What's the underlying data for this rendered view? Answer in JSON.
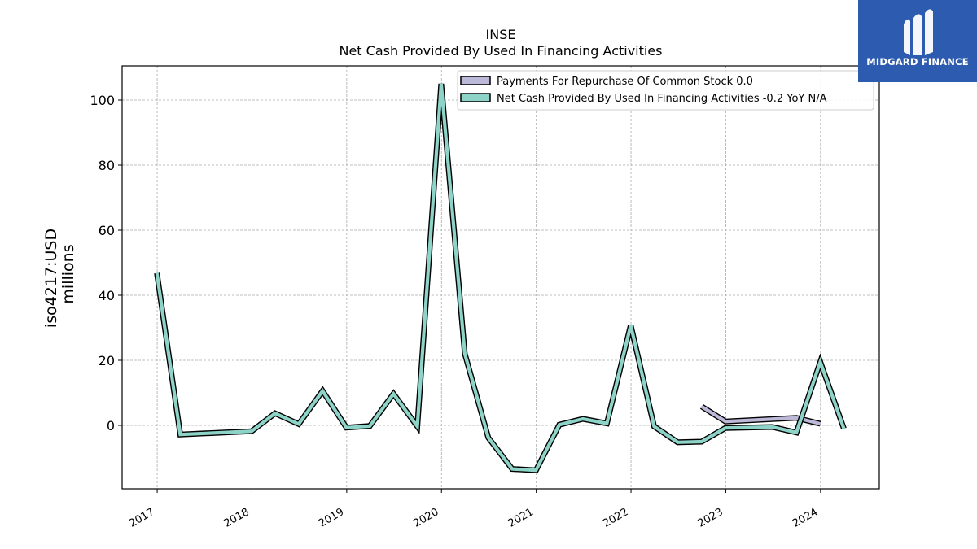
{
  "chart_data": {
    "type": "line",
    "title": "INSE",
    "subtitle": "Net Cash Provided By Used In Financing Activities",
    "ylabel": "iso4217:USD",
    "ylabel2": "millions",
    "xlabel": "",
    "ylim": [
      -19.5,
      110.5
    ],
    "xlim": [
      2016.63,
      2024.62
    ],
    "yticks": [
      0,
      20,
      40,
      60,
      80,
      100
    ],
    "xticks": [
      "2017",
      "2018",
      "2019",
      "2020",
      "2021",
      "2022",
      "2023",
      "2024"
    ],
    "grid": true,
    "legend_position": "top-right",
    "series": [
      {
        "name": "Payments For Repurchase Of Common Stock",
        "legend_label": "Payments For Repurchase Of Common Stock  0.0",
        "color": "#bcb8d8",
        "points": [
          [
            "2022-09-30",
            5.8
          ],
          [
            "2022-12-31",
            1.2
          ],
          [
            "2023-09-30",
            2.3
          ],
          [
            "2023-12-31",
            0.5
          ]
        ]
      },
      {
        "name": "Net Cash Provided By Used In Financing Activities",
        "legend_label": "Net Cash Provided By Used In Financing Activities  -0.2 YoY N/A",
        "color": "#8dd3c7",
        "points": [
          [
            "2016-12-31",
            46.8
          ],
          [
            "2017-03-31",
            -2.8
          ],
          [
            "2017-12-31",
            -1.8
          ],
          [
            "2018-03-31",
            3.7
          ],
          [
            "2018-06-30",
            0.4
          ],
          [
            "2018-09-30",
            10.6
          ],
          [
            "2018-12-31",
            -0.7
          ],
          [
            "2019-03-31",
            -0.2
          ],
          [
            "2019-06-30",
            9.7
          ],
          [
            "2019-09-30",
            -0.3
          ],
          [
            "2019-12-31",
            105.0
          ],
          [
            "2020-03-31",
            22.0
          ],
          [
            "2020-06-30",
            -3.8
          ],
          [
            "2020-09-30",
            -13.4
          ],
          [
            "2020-12-31",
            -13.8
          ],
          [
            "2021-03-31",
            0.2
          ],
          [
            "2021-06-30",
            2.0
          ],
          [
            "2021-09-30",
            0.6
          ],
          [
            "2021-12-31",
            30.8
          ],
          [
            "2022-03-31",
            -0.3
          ],
          [
            "2022-06-30",
            -5.2
          ],
          [
            "2022-09-30",
            -5.0
          ],
          [
            "2022-12-31",
            -0.8
          ],
          [
            "2023-06-30",
            -0.5
          ],
          [
            "2023-09-30",
            -2.2
          ],
          [
            "2023-12-31",
            19.5
          ],
          [
            "2024-03-31",
            -1.0
          ]
        ]
      }
    ]
  },
  "logo": {
    "text": "MIDGARD FINANCE",
    "background": "#2d5bb0"
  }
}
